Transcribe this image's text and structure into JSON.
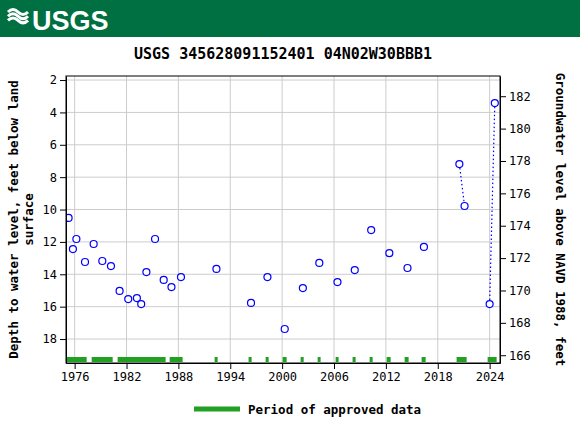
{
  "header": {
    "logo_text": "USGS"
  },
  "chart_data": {
    "type": "scatter",
    "title": "USGS 345628091152401 04N02W30BBB1",
    "ylabel": [
      "Depth to water level, feet below land",
      "surface"
    ],
    "y2label": "Groundwater level above NAVD 1988, feet",
    "xlim": [
      1975.0,
      2025.2
    ],
    "xticks": [
      1976,
      1982,
      1988,
      1994,
      2000,
      2006,
      2012,
      2018,
      2024
    ],
    "ylim": [
      1.75,
      19.48
    ],
    "yticks": [
      2,
      4,
      6,
      8,
      10,
      12,
      14,
      16,
      18
    ],
    "y2lim": [
      183.25,
      165.52
    ],
    "y2ticks": [
      166,
      168,
      170,
      172,
      174,
      176,
      178,
      180,
      182
    ],
    "grid": true,
    "series": [
      {
        "name": "Depth to water level",
        "color": "#0000ff",
        "marker": "open-circle",
        "line_style": "dotted",
        "x": [
          1975.3,
          null,
          1975.8,
          null,
          1976.2,
          null,
          1977.2,
          null,
          1978.2,
          null,
          1979.2,
          null,
          1980.2,
          null,
          1981.2,
          null,
          1982.2,
          null,
          1983.2,
          null,
          1983.7,
          null,
          1984.3,
          null,
          1985.3,
          null,
          1986.3,
          null,
          1987.2,
          null,
          1988.3,
          null,
          1992.4,
          null,
          1996.4,
          null,
          1998.3,
          null,
          2000.3,
          null,
          2002.4,
          null,
          2004.3,
          null,
          2006.4,
          null,
          2008.4,
          null,
          2010.3,
          null,
          2012.4,
          null,
          2014.5,
          null,
          2016.4,
          null,
          2020.5,
          2021.1,
          null,
          2024.0,
          2024.6
        ],
        "values": [
          10.52,
          null,
          12.44,
          null,
          11.82,
          null,
          13.24,
          null,
          12.13,
          null,
          13.18,
          null,
          13.49,
          null,
          15.03,
          null,
          15.53,
          null,
          15.47,
          null,
          15.84,
          null,
          13.86,
          null,
          11.82,
          null,
          14.35,
          null,
          14.79,
          null,
          14.17,
          null,
          13.67,
          null,
          15.77,
          null,
          14.17,
          null,
          17.38,
          null,
          14.85,
          null,
          13.3,
          null,
          14.48,
          null,
          13.74,
          null,
          11.27,
          null,
          12.69,
          null,
          13.61,
          null,
          12.31,
          null,
          7.19,
          9.78,
          null,
          15.84,
          3.42
        ]
      }
    ],
    "approved": {
      "name": "Period of approved data",
      "color": "#22a022",
      "periods": [
        [
          1974.96,
          1977.39
        ],
        [
          1977.97,
          1980.4
        ],
        [
          1980.97,
          1986.52
        ],
        [
          1986.99,
          1988.49
        ],
        [
          1992.19,
          1992.54
        ],
        [
          1996.12,
          1996.47
        ],
        [
          1998.09,
          1998.44
        ],
        [
          2000.06,
          2000.52
        ],
        [
          2002.14,
          2002.49
        ],
        [
          2004.11,
          2004.45
        ],
        [
          2006.19,
          2006.53
        ],
        [
          2008.15,
          2008.5
        ],
        [
          2010.12,
          2010.47
        ],
        [
          2012.09,
          2012.55
        ],
        [
          2014.17,
          2014.63
        ],
        [
          2016.13,
          2016.6
        ],
        [
          2020.18,
          2021.34
        ],
        [
          2023.77,
          2024.81
        ]
      ]
    }
  }
}
